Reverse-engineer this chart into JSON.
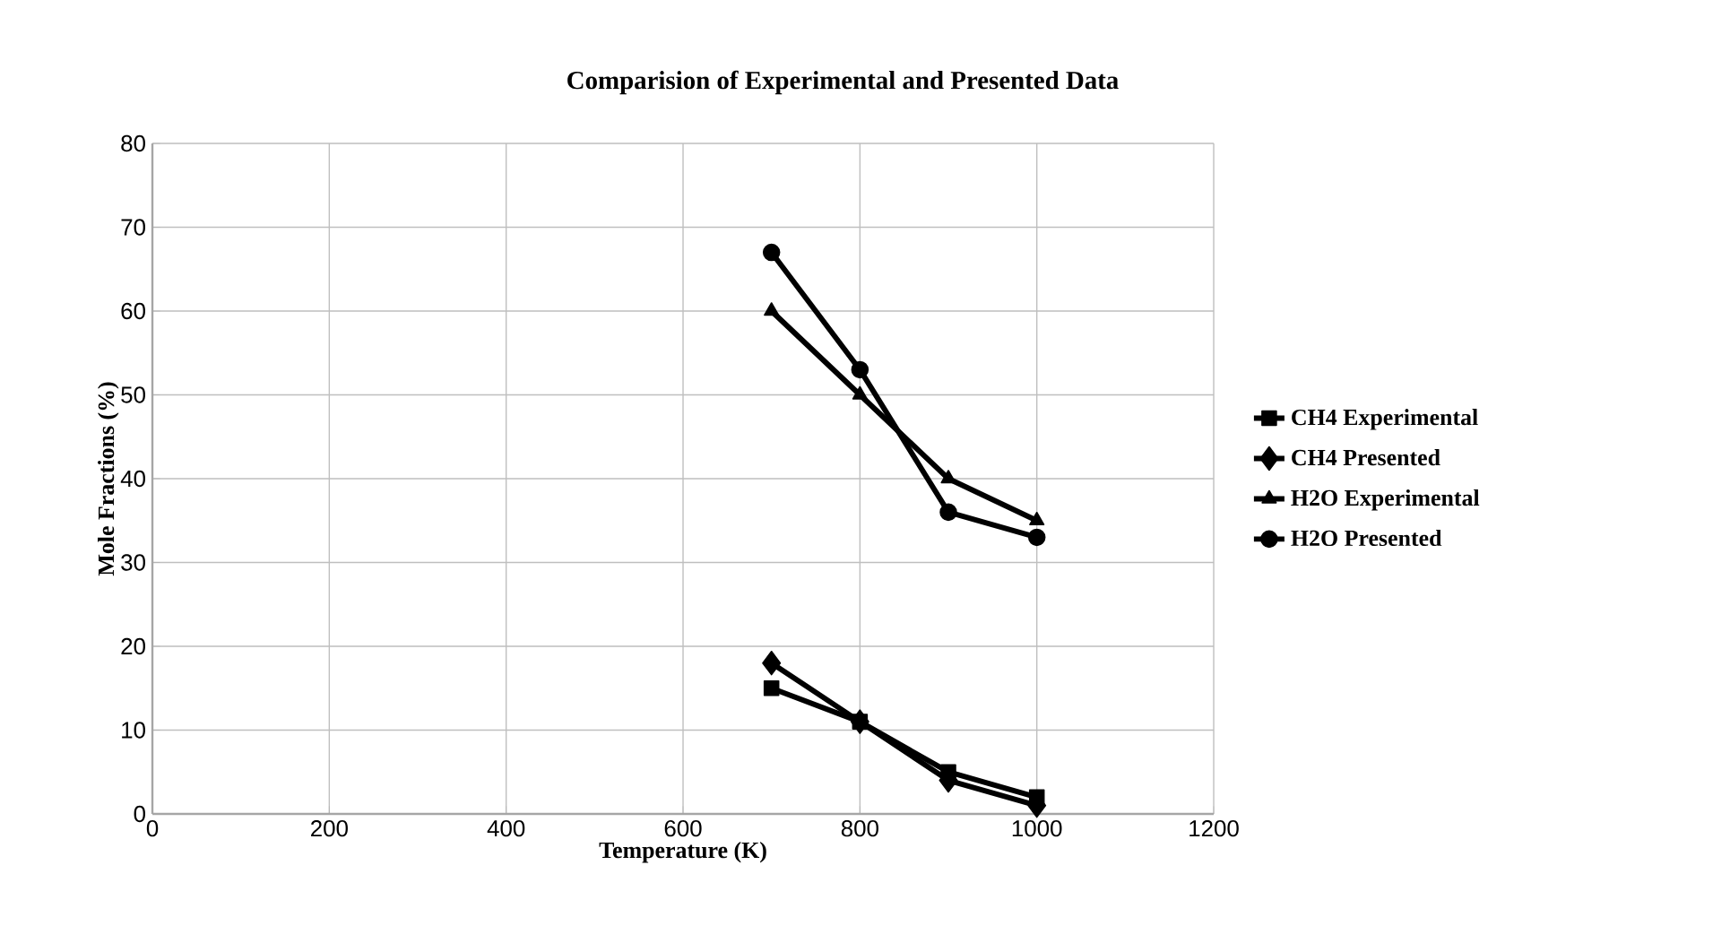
{
  "chart_data": {
    "type": "line",
    "title": "Comparision of Experimental and Presented Data",
    "xlabel": "Temperature (K)",
    "ylabel": "Mole Fractions (%)",
    "x": [
      700,
      800,
      900,
      1000
    ],
    "series": [
      {
        "name": "CH4 Experimental",
        "color": "#000000",
        "marker": "square",
        "values": [
          15,
          11,
          5,
          2
        ]
      },
      {
        "name": "CH4 Presented",
        "color": "#000000",
        "marker": "diamond",
        "values": [
          18,
          11,
          4,
          1
        ]
      },
      {
        "name": "H2O Experimental",
        "color": "#000000",
        "marker": "triangle",
        "values": [
          60,
          50,
          40,
          35
        ]
      },
      {
        "name": "H2O Presented",
        "color": "#000000",
        "marker": "circle",
        "values": [
          67,
          53,
          36,
          33
        ]
      }
    ],
    "xlim": [
      0,
      1200
    ],
    "xticks": [
      0,
      200,
      400,
      600,
      800,
      1000,
      1200
    ],
    "ylim": [
      0,
      80
    ],
    "yticks": [
      0,
      10,
      20,
      30,
      40,
      50,
      60,
      70,
      80
    ],
    "grid": true,
    "legend": "right",
    "line_style": "solid"
  }
}
